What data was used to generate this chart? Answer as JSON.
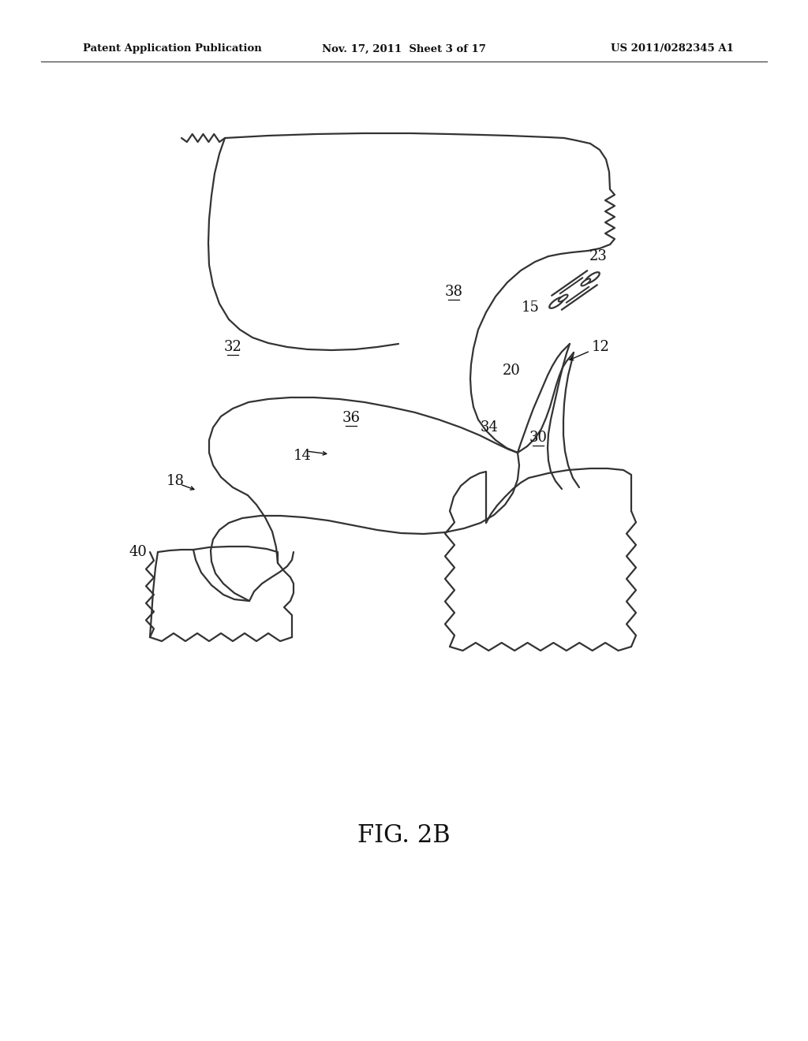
{
  "bg_color": "#ffffff",
  "line_color": "#333333",
  "line_width": 1.6,
  "header_left": "Patent Application Publication",
  "header_mid": "Nov. 17, 2011  Sheet 3 of 17",
  "header_right": "US 2011/0282345 A1",
  "fig_label": "FIG. 2B"
}
